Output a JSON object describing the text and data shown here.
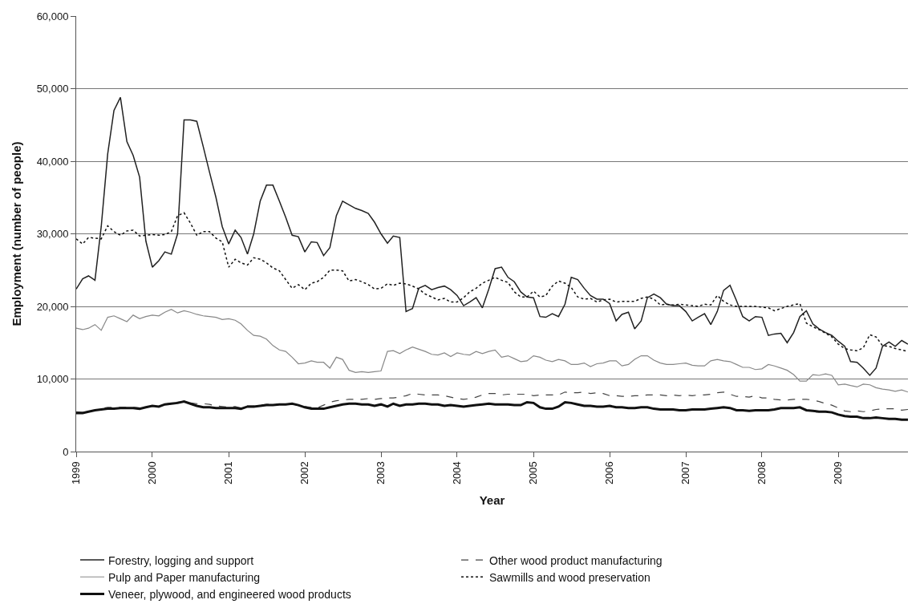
{
  "chart_data": {
    "type": "line",
    "xlabel": "Year",
    "ylabel": "Employment (number of people)",
    "x": [
      "1999-01",
      "1999-02",
      "1999-03",
      "1999-04",
      "1999-05",
      "1999-06",
      "1999-07",
      "1999-08",
      "1999-09",
      "1999-10",
      "1999-11",
      "1999-12",
      "2000-01",
      "2000-02",
      "2000-03",
      "2000-04",
      "2000-05",
      "2000-06",
      "2000-07",
      "2000-08",
      "2000-09",
      "2000-10",
      "2000-11",
      "2000-12",
      "2001-01",
      "2001-02",
      "2001-03",
      "2001-04",
      "2001-05",
      "2001-06",
      "2001-07",
      "2001-08",
      "2001-09",
      "2001-10",
      "2001-11",
      "2001-12",
      "2002-01",
      "2002-02",
      "2002-03",
      "2002-04",
      "2002-05",
      "2002-06",
      "2002-07",
      "2002-08",
      "2002-09",
      "2002-10",
      "2002-11",
      "2002-12",
      "2003-01",
      "2003-02",
      "2003-03",
      "2003-04",
      "2003-05",
      "2003-06",
      "2003-07",
      "2003-08",
      "2003-09",
      "2003-10",
      "2003-11",
      "2003-12",
      "2004-01",
      "2004-02",
      "2004-03",
      "2004-04",
      "2004-05",
      "2004-06",
      "2004-07",
      "2004-08",
      "2004-09",
      "2004-10",
      "2004-11",
      "2004-12",
      "2005-01",
      "2005-02",
      "2005-03",
      "2005-04",
      "2005-05",
      "2005-06",
      "2005-07",
      "2005-08",
      "2005-09",
      "2005-10",
      "2005-11",
      "2005-12",
      "2006-01",
      "2006-02",
      "2006-03",
      "2006-04",
      "2006-05",
      "2006-06",
      "2006-07",
      "2006-08",
      "2006-09",
      "2006-10",
      "2006-11",
      "2006-12",
      "2007-01",
      "2007-02",
      "2007-03",
      "2007-04",
      "2007-05",
      "2007-06",
      "2007-07",
      "2007-08",
      "2007-09",
      "2007-10",
      "2007-11",
      "2007-12",
      "2008-01",
      "2008-02",
      "2008-03",
      "2008-04",
      "2008-05",
      "2008-06",
      "2008-07",
      "2008-08",
      "2008-09",
      "2008-10",
      "2008-11",
      "2008-12",
      "2009-01",
      "2009-02",
      "2009-03",
      "2009-04",
      "2009-05",
      "2009-06",
      "2009-07",
      "2009-08",
      "2009-09",
      "2009-10",
      "2009-11",
      "2009-12"
    ],
    "series": [
      {
        "name": "Forestry, logging and support",
        "color": "#222222",
        "line_style": "solid",
        "values": [
          22400,
          23800,
          24200,
          23600,
          31000,
          41000,
          47000,
          48800,
          42700,
          40800,
          37800,
          29000,
          25400,
          26300,
          27500,
          27200,
          30000,
          45700,
          45700,
          45500,
          42000,
          38500,
          35000,
          31000,
          28600,
          30500,
          29500,
          27200,
          30000,
          34500,
          36700,
          36700,
          34500,
          32300,
          29800,
          29600,
          27500,
          28900,
          28800,
          27000,
          28100,
          32500,
          34500,
          34000,
          33500,
          33200,
          32800,
          31600,
          30000,
          28700,
          29700,
          29500,
          19300,
          19700,
          22500,
          22900,
          22300,
          22600,
          22800,
          22300,
          21500,
          20100,
          20600,
          21200,
          19800,
          22400,
          25200,
          25400,
          24000,
          23400,
          22000,
          21300,
          21200,
          18600,
          18500,
          19000,
          18600,
          20300,
          24000,
          23700,
          22500,
          21500,
          21000,
          21000,
          20400,
          18000,
          18900,
          19200,
          16900,
          18000,
          21200,
          21700,
          21200,
          20300,
          20100,
          20100,
          19300,
          18000,
          18500,
          19000,
          17500,
          19300,
          22200,
          22900,
          20800,
          18600,
          18000,
          18600,
          18500,
          16000,
          16200,
          16300,
          15000,
          16400,
          18600,
          19400,
          17600,
          16900,
          16400,
          16000,
          15200,
          14500,
          12400,
          12300,
          11500,
          10500,
          11500,
          14500,
          15100,
          14500,
          15300,
          14800
        ]
      },
      {
        "name": "Other wood product manufacturing",
        "color": "#444444",
        "line_style": "dashed",
        "values": [
          5500,
          5400,
          5500,
          5700,
          5900,
          6100,
          6100,
          6100,
          6100,
          6100,
          6000,
          6100,
          6300,
          6300,
          6500,
          6700,
          6800,
          6900,
          6700,
          6600,
          6600,
          6500,
          6300,
          6200,
          6100,
          6200,
          6000,
          6300,
          6300,
          6400,
          6500,
          6500,
          6500,
          6500,
          6600,
          6300,
          6200,
          6100,
          6000,
          6400,
          6800,
          7000,
          7100,
          7200,
          7200,
          7200,
          7300,
          7200,
          7300,
          7400,
          7400,
          7500,
          7700,
          8000,
          7900,
          7800,
          7800,
          7800,
          7700,
          7500,
          7300,
          7200,
          7300,
          7500,
          7800,
          8000,
          8000,
          7800,
          7900,
          7900,
          7900,
          7900,
          7700,
          7800,
          7800,
          7800,
          7800,
          8200,
          8100,
          8100,
          8200,
          8000,
          8100,
          8000,
          7700,
          7700,
          7600,
          7600,
          7700,
          7700,
          7800,
          7800,
          7800,
          7700,
          7800,
          7700,
          7800,
          7700,
          7800,
          7800,
          7900,
          8100,
          8200,
          7900,
          7600,
          7600,
          7500,
          7700,
          7400,
          7400,
          7200,
          7100,
          7100,
          7200,
          7200,
          7200,
          7100,
          6900,
          6600,
          6400,
          6000,
          5600,
          5500,
          5600,
          5500,
          5600,
          5800,
          5900,
          5900,
          5900,
          5700,
          5800
        ]
      },
      {
        "name": "Pulp and Paper manufacturing",
        "color": "#888888",
        "line_style": "solid",
        "values": [
          17000,
          16800,
          17000,
          17500,
          16700,
          18500,
          18700,
          18300,
          17900,
          18800,
          18300,
          18600,
          18800,
          18700,
          19200,
          19600,
          19100,
          19400,
          19200,
          18900,
          18700,
          18600,
          18500,
          18200,
          18300,
          18100,
          17600,
          16700,
          16000,
          15900,
          15500,
          14600,
          14000,
          13800,
          13000,
          12100,
          12200,
          12500,
          12300,
          12300,
          11500,
          13000,
          12700,
          11200,
          10900,
          11000,
          10900,
          11000,
          11100,
          13800,
          13900,
          13500,
          14000,
          14400,
          14100,
          13800,
          13400,
          13300,
          13600,
          13100,
          13600,
          13400,
          13300,
          13800,
          13500,
          13800,
          14000,
          13000,
          13200,
          12800,
          12400,
          12500,
          13200,
          13000,
          12600,
          12400,
          12700,
          12500,
          12000,
          12000,
          12200,
          11700,
          12100,
          12200,
          12500,
          12500,
          11800,
          12000,
          12700,
          13200,
          13200,
          12600,
          12200,
          12000,
          12000,
          12100,
          12200,
          11900,
          11800,
          11800,
          12500,
          12700,
          12500,
          12400,
          12000,
          11600,
          11600,
          11300,
          11400,
          12000,
          11800,
          11500,
          11200,
          10600,
          9700,
          9700,
          10600,
          10500,
          10700,
          10500,
          9200,
          9300,
          9100,
          8900,
          9300,
          9200,
          8800,
          8600,
          8500,
          8300,
          8500,
          8200
        ]
      },
      {
        "name": "Sawmills and wood preservation",
        "color": "#111111",
        "line_style": "dotted",
        "values": [
          29300,
          28600,
          29500,
          29400,
          29300,
          31100,
          30300,
          29800,
          30400,
          30500,
          29700,
          29800,
          29900,
          29800,
          29900,
          30300,
          32500,
          32900,
          31500,
          29800,
          30300,
          30300,
          29400,
          28900,
          25400,
          26500,
          26000,
          25700,
          26700,
          26500,
          26000,
          25300,
          24900,
          23700,
          22500,
          23000,
          22300,
          23200,
          23400,
          24000,
          25000,
          25000,
          24900,
          23500,
          23700,
          23400,
          23000,
          22400,
          22500,
          23100,
          22900,
          23200,
          23100,
          22800,
          22400,
          21700,
          21300,
          20900,
          21100,
          20600,
          20600,
          21200,
          22000,
          22500,
          23200,
          23600,
          24000,
          23600,
          23300,
          22000,
          21300,
          21300,
          22100,
          21300,
          21500,
          22800,
          23500,
          23200,
          22600,
          21300,
          21000,
          21100,
          20600,
          20900,
          21000,
          20600,
          20700,
          20700,
          20700,
          21100,
          21300,
          21000,
          20200,
          20300,
          20200,
          20300,
          20200,
          20100,
          20000,
          20300,
          20200,
          21500,
          20700,
          20200,
          20000,
          20000,
          20000,
          20000,
          19900,
          19800,
          19400,
          19700,
          20000,
          20200,
          20400,
          17700,
          17200,
          16800,
          16300,
          15800,
          14800,
          14200,
          14000,
          13900,
          14300,
          16100,
          15800,
          14600,
          14500,
          14200,
          14000,
          13800
        ]
      },
      {
        "name": "Veneer, plywood, and engineered wood products",
        "color": "#111111",
        "line_style": "solid",
        "values": [
          5300,
          5300,
          5500,
          5700,
          5800,
          5900,
          5900,
          6000,
          6000,
          6000,
          5900,
          6100,
          6300,
          6200,
          6500,
          6600,
          6700,
          6900,
          6600,
          6300,
          6100,
          6100,
          6000,
          6000,
          6000,
          6000,
          5900,
          6200,
          6200,
          6300,
          6400,
          6400,
          6500,
          6500,
          6600,
          6400,
          6100,
          5900,
          5900,
          5900,
          6100,
          6300,
          6500,
          6600,
          6600,
          6500,
          6500,
          6300,
          6500,
          6200,
          6600,
          6300,
          6500,
          6500,
          6600,
          6600,
          6500,
          6500,
          6300,
          6400,
          6300,
          6200,
          6300,
          6400,
          6500,
          6600,
          6500,
          6500,
          6500,
          6400,
          6400,
          6800,
          6700,
          6100,
          5900,
          5900,
          6200,
          6800,
          6700,
          6500,
          6300,
          6300,
          6200,
          6200,
          6300,
          6100,
          6100,
          6000,
          6000,
          6100,
          6100,
          5900,
          5800,
          5800,
          5800,
          5700,
          5700,
          5800,
          5800,
          5800,
          5900,
          6000,
          6100,
          6000,
          5700,
          5700,
          5600,
          5700,
          5700,
          5700,
          5800,
          6000,
          6000,
          6000,
          6100,
          5700,
          5600,
          5500,
          5500,
          5400,
          5100,
          4900,
          4800,
          4800,
          4600,
          4600,
          4700,
          4600,
          4500,
          4500,
          4400,
          4400
        ]
      }
    ],
    "xlim": [
      "1999-01",
      "2009-12"
    ],
    "xticks": [
      "1999",
      "2000",
      "2001",
      "2002",
      "2003",
      "2004",
      "2005",
      "2006",
      "2007",
      "2008",
      "2009"
    ],
    "ylim": [
      0,
      60000
    ],
    "yticks": [
      {
        "value": 0,
        "label": "0"
      },
      {
        "value": 10000,
        "label": "10,000"
      },
      {
        "value": 20000,
        "label": "20,000"
      },
      {
        "value": 30000,
        "label": "30,000"
      },
      {
        "value": 40000,
        "label": "40,000"
      },
      {
        "value": 50000,
        "label": "50,000"
      },
      {
        "value": 60000,
        "label": "60,000"
      }
    ],
    "grid": "y",
    "legend": "bottom",
    "marker": "none"
  }
}
